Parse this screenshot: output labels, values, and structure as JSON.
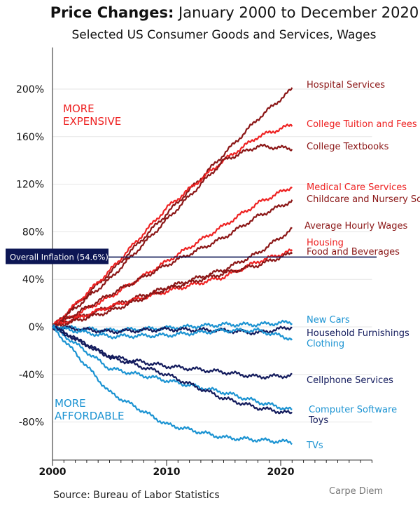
{
  "chart_data": {
    "type": "line",
    "title": "Price Changes:",
    "title_rest": "January 2000 to December 2020",
    "subtitle": "Selected US Consumer Goods and Services, Wages",
    "x": [
      2000,
      2005,
      2010,
      2015,
      2018,
      2020
    ],
    "xlim": [
      2000,
      2028
    ],
    "ylim": [
      -112,
      235
    ],
    "x_ticks": [
      "2000",
      "2010",
      "2020"
    ],
    "y_ticks": [
      "-80%",
      "-40%",
      "0%",
      "40%",
      "80%",
      "120%",
      "160%",
      "200%"
    ],
    "y_tick_values": [
      -80,
      -40,
      0,
      40,
      80,
      120,
      160,
      200
    ],
    "grid": true,
    "colors": {
      "bright_red": "#ee2222",
      "dark_red": "#8b1616",
      "light_blue": "#1b93d2",
      "navy": "#121a5c",
      "inflation": "#0d1654"
    },
    "series": [
      {
        "name": "Hospital Services",
        "color": "dark_red",
        "values": [
          0,
          45,
          95,
          145,
          175,
          200
        ]
      },
      {
        "name": "College Tuition and Fees",
        "color": "bright_red",
        "values": [
          0,
          47,
          100,
          140,
          160,
          170
        ]
      },
      {
        "name": "College Textbooks",
        "color": "dark_red",
        "values": [
          0,
          40,
          90,
          140,
          152,
          150
        ]
      },
      {
        "name": "Medical Care Services",
        "color": "bright_red",
        "values": [
          0,
          25,
          55,
          85,
          104,
          118
        ]
      },
      {
        "name": "Childcare and Nursery School",
        "color": "dark_red",
        "values": [
          0,
          27,
          52,
          75,
          93,
          106
        ]
      },
      {
        "name": "Average Hourly Wages",
        "color": "dark_red",
        "values": [
          0,
          17,
          33,
          48,
          62,
          82
        ]
      },
      {
        "name": "Housing",
        "color": "bright_red",
        "values": [
          0,
          17,
          30,
          42,
          55,
          64
        ]
      },
      {
        "name": "Food and Beverages",
        "color": "dark_red",
        "values": [
          0,
          13,
          32,
          45,
          52,
          62
        ]
      },
      {
        "name": "New Cars",
        "color": "light_blue",
        "values": [
          0,
          -3,
          -1,
          2,
          2,
          4
        ]
      },
      {
        "name": "Household Furnishings",
        "color": "navy",
        "values": [
          0,
          -4,
          -2,
          -3,
          -5,
          0
        ]
      },
      {
        "name": "Clothing",
        "color": "light_blue",
        "values": [
          0,
          -8,
          -7,
          -3,
          -3,
          -10
        ]
      },
      {
        "name": "Cellphone Services",
        "color": "navy",
        "values": [
          0,
          -25,
          -33,
          -38,
          -42,
          -41
        ]
      },
      {
        "name": "Computer Software",
        "color": "light_blue",
        "values": [
          0,
          -35,
          -45,
          -55,
          -63,
          -70
        ]
      },
      {
        "name": "Toys",
        "color": "navy",
        "values": [
          0,
          -25,
          -40,
          -60,
          -68,
          -73
        ]
      },
      {
        "name": "TVs",
        "color": "light_blue",
        "values": [
          0,
          -55,
          -82,
          -93,
          -95,
          -97
        ]
      }
    ],
    "reference_line": {
      "label": "Overall Inflation (54.6%)",
      "value": 54.6
    },
    "annotations": {
      "more_expensive": [
        "MORE",
        "EXPENSIVE"
      ],
      "more_affordable": [
        "MORE",
        "AFFORDABLE"
      ]
    },
    "source": "Source: Bureau of Labor Statistics",
    "watermark": "Carpe Diem"
  }
}
